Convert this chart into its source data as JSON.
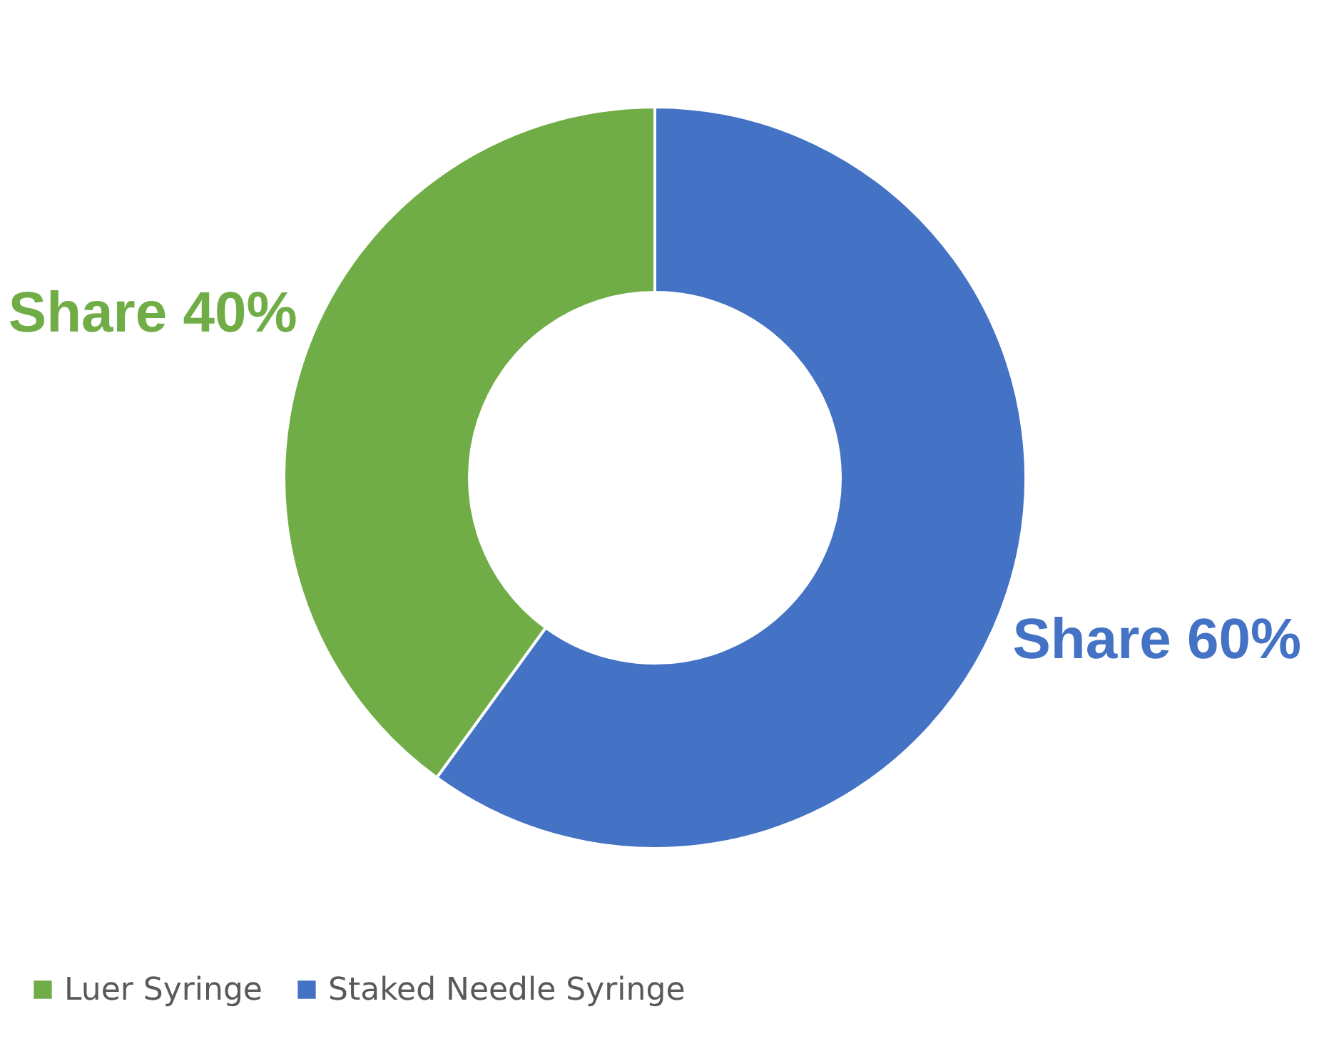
{
  "chart_data": {
    "type": "donut",
    "categories": [
      "Luer Syringe",
      "Staked Needle Syringe"
    ],
    "values": [
      40,
      60
    ],
    "colors": [
      "#70ad47",
      "#4472c4"
    ],
    "value_labels": [
      "Share 40%",
      "Share 60%"
    ],
    "legend": "bottom"
  }
}
